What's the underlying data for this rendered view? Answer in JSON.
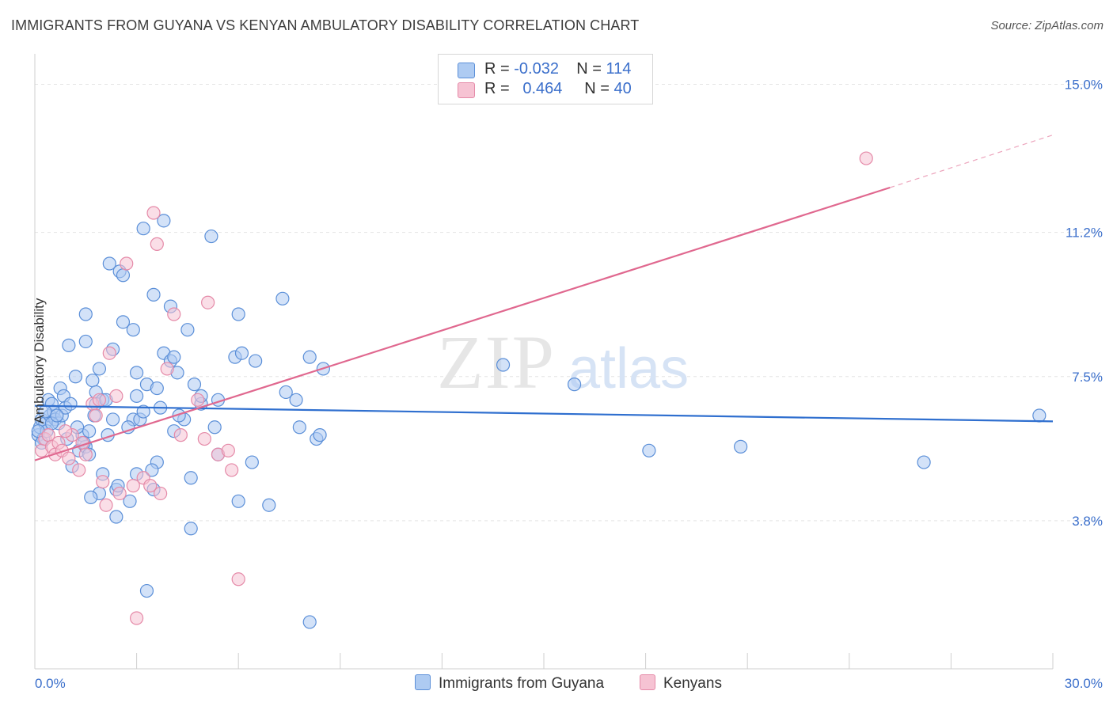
{
  "header": {
    "title": "IMMIGRANTS FROM GUYANA VS KENYAN AMBULATORY DISABILITY CORRELATION CHART",
    "source": "Source: ZipAtlas.com"
  },
  "legend": {
    "rows": [
      {
        "r_label": "R =",
        "r_value": "-0.032",
        "n_label": "N =",
        "n_value": "114"
      },
      {
        "r_label": "R =",
        "r_value": "0.464",
        "n_label": "N =",
        "n_value": "40"
      }
    ],
    "bottom": [
      "Immigrants from Guyana",
      "Kenyans"
    ]
  },
  "watermark": {
    "zip": "ZIP",
    "atlas": "atlas"
  },
  "colors": {
    "blue_fill": "#aecbf2",
    "blue_stroke": "#5b8fd8",
    "blue_line": "#2f6fcf",
    "pink_fill": "#f6c3d3",
    "pink_stroke": "#e58aa8",
    "pink_line": "#e0688f",
    "axis_text": "#3b6fcb",
    "grid": "#e4e4e4"
  },
  "chart_data": {
    "type": "scatter",
    "title": "IMMIGRANTS FROM GUYANA VS KENYAN AMBULATORY DISABILITY CORRELATION CHART",
    "xlabel": "",
    "ylabel": "Ambulatory Disability",
    "xlim": [
      0,
      30
    ],
    "ylim": [
      0,
      15.6
    ],
    "x_tick_labels": [
      "0.0%",
      "30.0%"
    ],
    "y_ticks": [
      3.8,
      7.5,
      11.2,
      15.0
    ],
    "y_tick_labels": [
      "3.8%",
      "7.5%",
      "11.2%",
      "15.0%"
    ],
    "grid": true,
    "legend_position": "top-center",
    "series": [
      {
        "name": "Immigrants from Guyana",
        "trend": {
          "x": [
            0,
            30
          ],
          "y": [
            6.75,
            6.35
          ]
        },
        "points": [
          [
            0.1,
            6.0
          ],
          [
            0.15,
            6.2
          ],
          [
            0.2,
            6.4
          ],
          [
            0.25,
            5.9
          ],
          [
            0.3,
            6.3
          ],
          [
            0.35,
            6.1
          ],
          [
            0.4,
            6.9
          ],
          [
            0.45,
            6.5
          ],
          [
            0.5,
            6.8
          ],
          [
            0.55,
            6.6
          ],
          [
            0.6,
            6.4
          ],
          [
            0.7,
            6.3
          ],
          [
            0.75,
            7.2
          ],
          [
            0.8,
            6.5
          ],
          [
            0.85,
            7.0
          ],
          [
            0.9,
            6.7
          ],
          [
            1.0,
            8.3
          ],
          [
            1.05,
            6.8
          ],
          [
            1.1,
            5.2
          ],
          [
            1.2,
            7.5
          ],
          [
            1.3,
            5.6
          ],
          [
            1.4,
            6.0
          ],
          [
            1.5,
            5.7
          ],
          [
            1.5,
            9.1
          ],
          [
            1.5,
            8.4
          ],
          [
            1.6,
            6.1
          ],
          [
            1.6,
            5.5
          ],
          [
            1.7,
            7.4
          ],
          [
            1.8,
            7.1
          ],
          [
            1.8,
            6.8
          ],
          [
            1.9,
            7.7
          ],
          [
            1.9,
            4.5
          ],
          [
            2.0,
            5.0
          ],
          [
            2.0,
            6.9
          ],
          [
            2.1,
            6.9
          ],
          [
            2.2,
            10.4
          ],
          [
            2.3,
            8.2
          ],
          [
            2.3,
            6.4
          ],
          [
            2.4,
            4.6
          ],
          [
            2.4,
            3.9
          ],
          [
            2.5,
            10.2
          ],
          [
            2.6,
            10.1
          ],
          [
            2.6,
            8.9
          ],
          [
            2.8,
            4.3
          ],
          [
            2.9,
            6.4
          ],
          [
            2.9,
            8.7
          ],
          [
            3.0,
            7.6
          ],
          [
            3.0,
            5.0
          ],
          [
            3.0,
            7.0
          ],
          [
            3.1,
            6.4
          ],
          [
            3.2,
            6.6
          ],
          [
            3.2,
            11.3
          ],
          [
            3.3,
            2.0
          ],
          [
            3.3,
            7.3
          ],
          [
            3.5,
            9.6
          ],
          [
            3.5,
            4.6
          ],
          [
            3.6,
            5.3
          ],
          [
            3.6,
            7.2
          ],
          [
            3.7,
            6.7
          ],
          [
            3.8,
            8.1
          ],
          [
            3.8,
            11.5
          ],
          [
            4.0,
            7.9
          ],
          [
            4.0,
            9.3
          ],
          [
            4.1,
            8.0
          ],
          [
            4.1,
            6.1
          ],
          [
            4.2,
            7.6
          ],
          [
            4.4,
            6.4
          ],
          [
            4.5,
            8.7
          ],
          [
            4.6,
            3.6
          ],
          [
            4.6,
            4.9
          ],
          [
            4.7,
            7.3
          ],
          [
            4.9,
            6.8
          ],
          [
            4.9,
            7.0
          ],
          [
            5.2,
            11.1
          ],
          [
            5.3,
            6.2
          ],
          [
            5.4,
            5.5
          ],
          [
            5.4,
            6.9
          ],
          [
            5.9,
            8.0
          ],
          [
            6.0,
            4.3
          ],
          [
            6.0,
            9.1
          ],
          [
            6.1,
            8.1
          ],
          [
            6.4,
            5.3
          ],
          [
            6.5,
            7.9
          ],
          [
            6.9,
            4.2
          ],
          [
            7.3,
            9.5
          ],
          [
            7.4,
            7.1
          ],
          [
            7.7,
            6.9
          ],
          [
            7.8,
            6.2
          ],
          [
            8.3,
            5.9
          ],
          [
            8.1,
            1.2
          ],
          [
            8.1,
            8.0
          ],
          [
            8.4,
            6.0
          ],
          [
            8.5,
            7.7
          ],
          [
            13.8,
            7.8
          ],
          [
            15.9,
            7.3
          ],
          [
            18.1,
            5.6
          ],
          [
            20.8,
            5.7
          ],
          [
            26.2,
            5.3
          ],
          [
            29.6,
            6.5
          ],
          [
            0.1,
            6.1
          ],
          [
            0.2,
            5.8
          ],
          [
            0.3,
            6.6
          ],
          [
            0.5,
            6.3
          ],
          [
            0.65,
            6.5
          ],
          [
            0.95,
            5.9
          ],
          [
            1.25,
            6.2
          ],
          [
            1.45,
            5.8
          ],
          [
            1.65,
            4.4
          ],
          [
            1.75,
            6.5
          ],
          [
            2.15,
            6.0
          ],
          [
            2.45,
            4.7
          ],
          [
            2.75,
            6.2
          ],
          [
            3.45,
            5.1
          ],
          [
            4.25,
            6.5
          ]
        ]
      },
      {
        "name": "Kenyans",
        "trend": {
          "x": [
            0,
            25.2
          ],
          "y": [
            5.35,
            12.35
          ]
        },
        "trend_extended": {
          "x": [
            25.2,
            30
          ],
          "y": [
            12.35,
            13.7
          ]
        },
        "points": [
          [
            0.2,
            5.6
          ],
          [
            0.3,
            5.9
          ],
          [
            0.4,
            6.0
          ],
          [
            0.5,
            5.7
          ],
          [
            0.6,
            5.5
          ],
          [
            0.7,
            5.8
          ],
          [
            0.8,
            5.6
          ],
          [
            1.0,
            5.4
          ],
          [
            1.1,
            6.0
          ],
          [
            1.3,
            5.1
          ],
          [
            1.4,
            5.8
          ],
          [
            1.5,
            5.5
          ],
          [
            1.7,
            6.8
          ],
          [
            1.8,
            6.5
          ],
          [
            1.9,
            6.9
          ],
          [
            2.0,
            4.8
          ],
          [
            2.1,
            4.2
          ],
          [
            2.2,
            8.1
          ],
          [
            2.4,
            7.0
          ],
          [
            2.5,
            4.5
          ],
          [
            2.7,
            10.4
          ],
          [
            2.9,
            4.7
          ],
          [
            3.0,
            1.3
          ],
          [
            3.2,
            4.9
          ],
          [
            3.4,
            4.7
          ],
          [
            3.5,
            11.7
          ],
          [
            3.6,
            10.9
          ],
          [
            3.7,
            4.5
          ],
          [
            3.9,
            7.7
          ],
          [
            4.1,
            9.1
          ],
          [
            4.3,
            6.0
          ],
          [
            4.8,
            6.9
          ],
          [
            5.0,
            5.9
          ],
          [
            5.1,
            9.4
          ],
          [
            5.4,
            5.5
          ],
          [
            5.7,
            5.6
          ],
          [
            5.8,
            5.1
          ],
          [
            6.0,
            2.3
          ],
          [
            24.5,
            13.1
          ],
          [
            0.9,
            6.1
          ]
        ]
      }
    ]
  }
}
